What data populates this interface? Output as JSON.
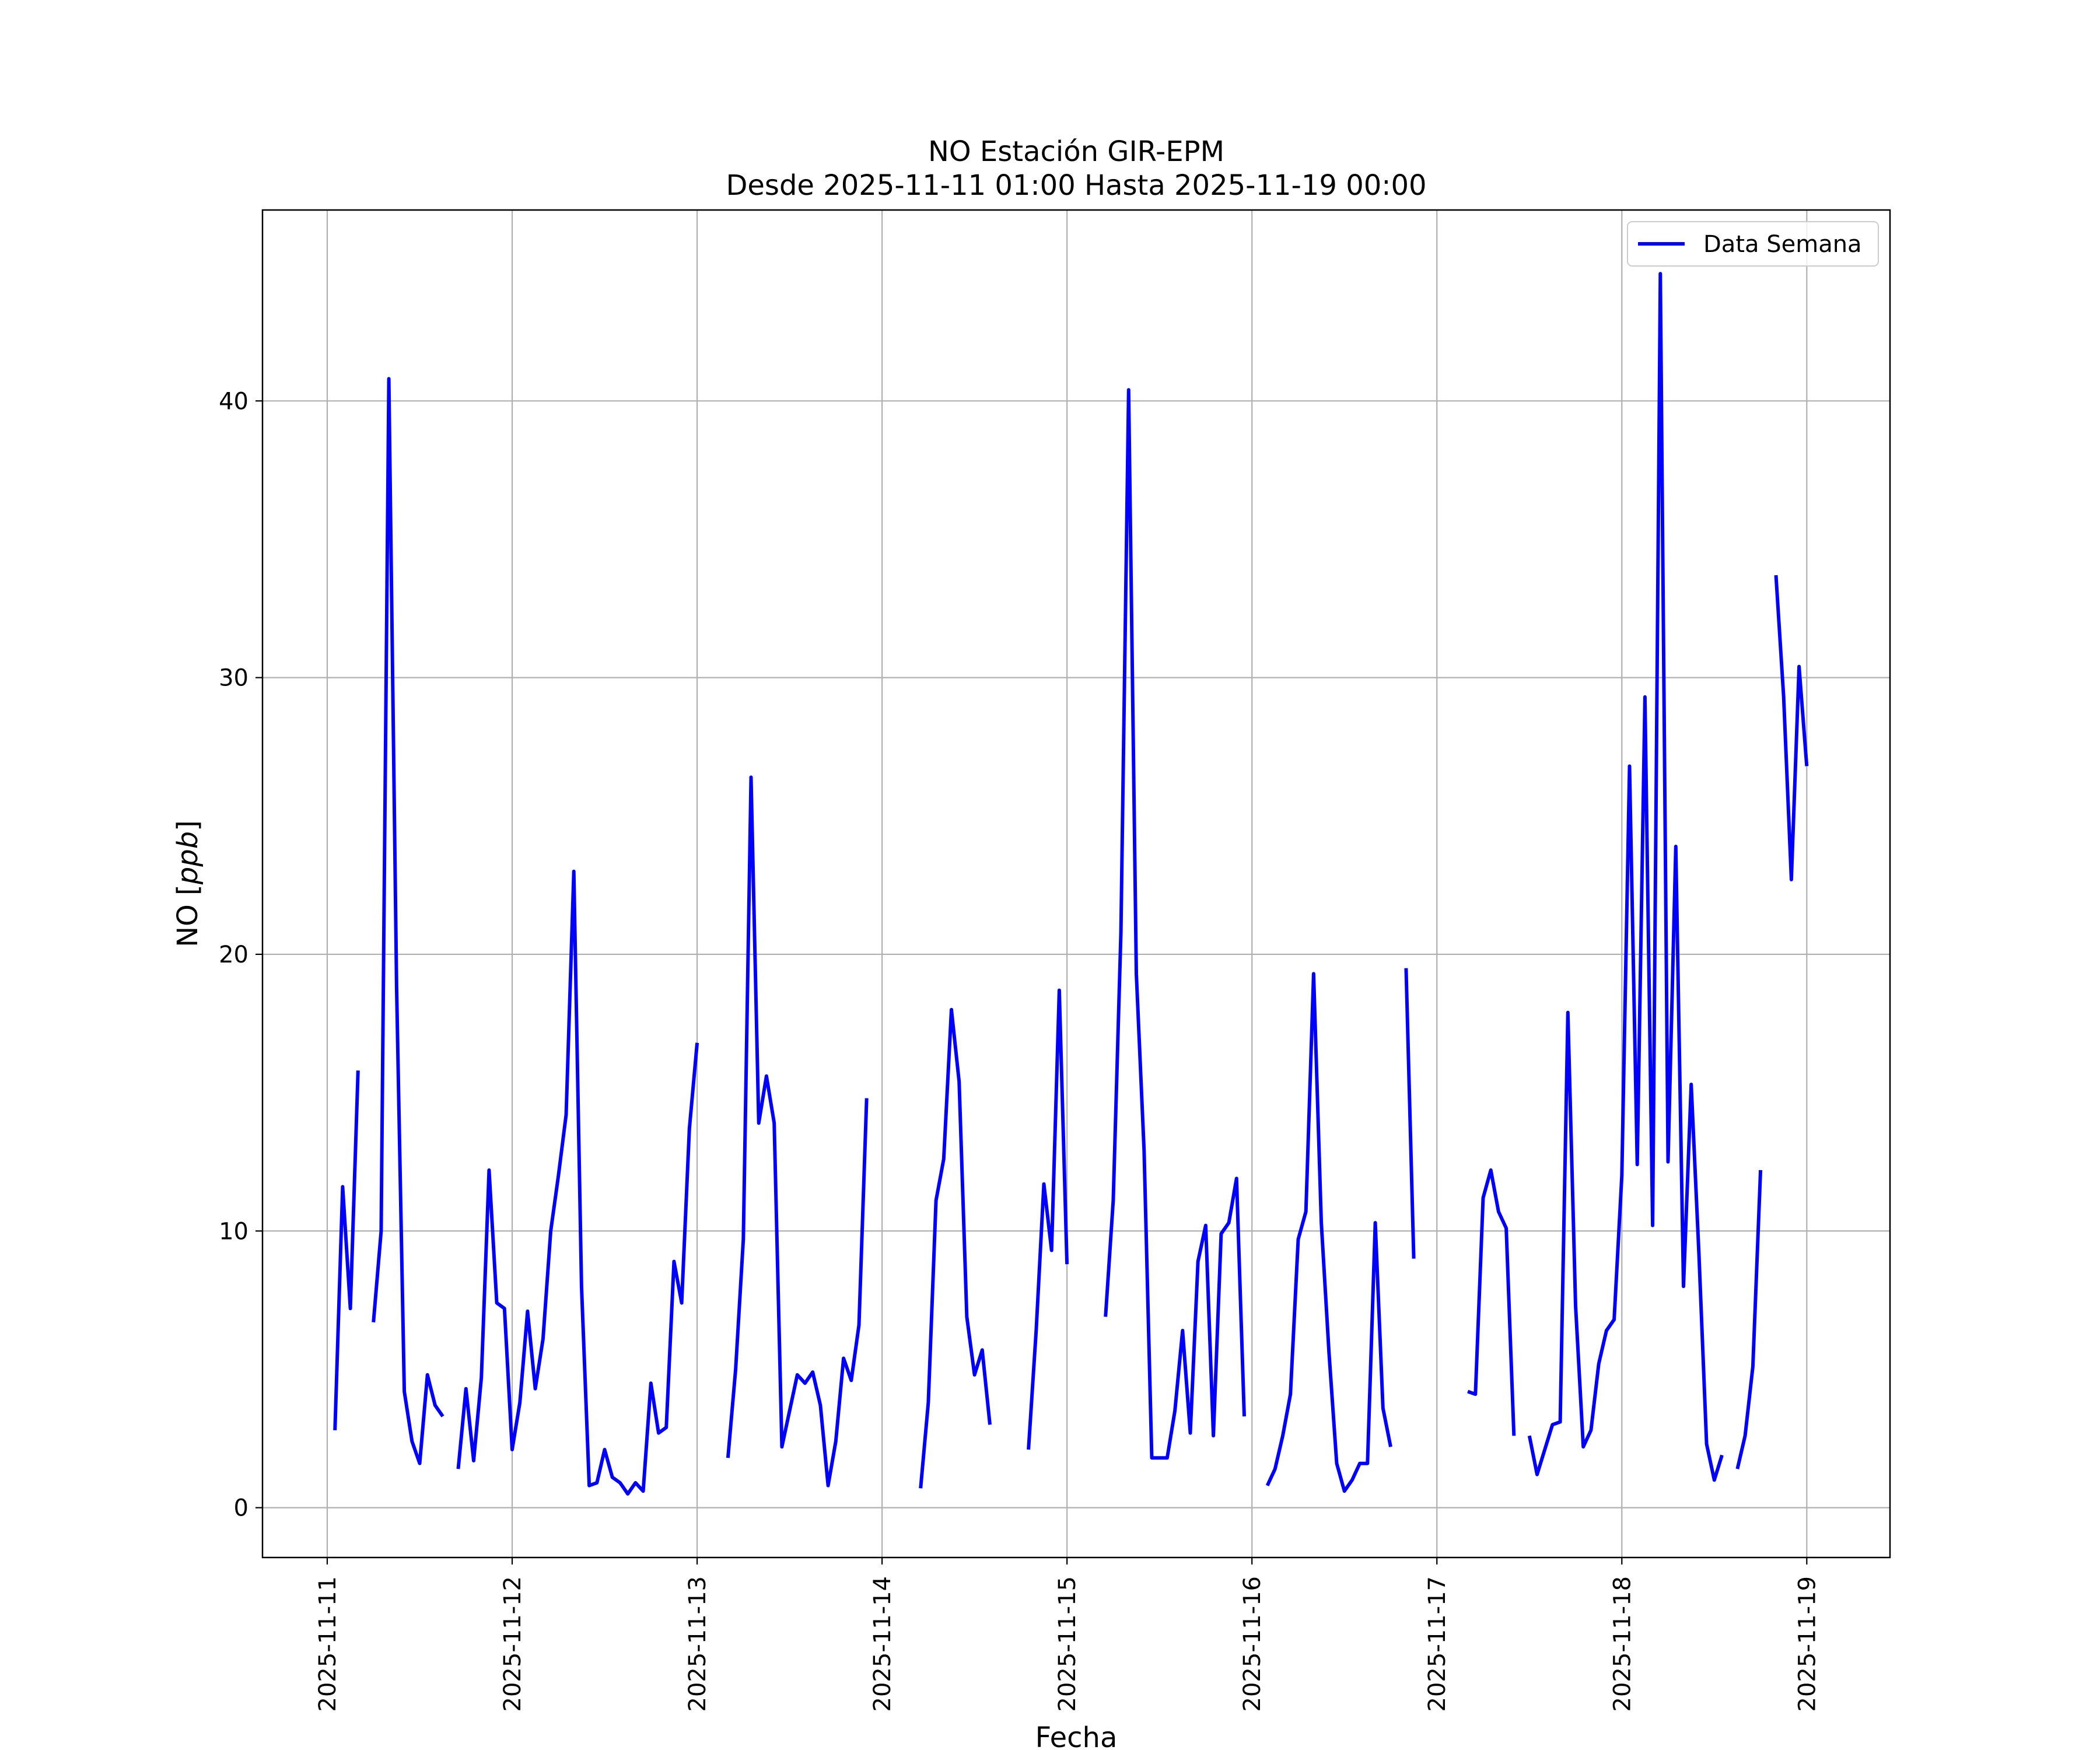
{
  "chart_data": {
    "type": "line",
    "title": "NO Estación GIR-EPM",
    "subtitle": "Desde 2025-11-11 01:00 Hasta 2025-11-19 00:00",
    "xlabel": "Fecha",
    "ylabel_main": "NO [",
    "ylabel_unit": "ppb",
    "ylabel_end": "]",
    "x_ticks": [
      "2025-11-11",
      "2025-11-12",
      "2025-11-13",
      "2025-11-14",
      "2025-11-15",
      "2025-11-16",
      "2025-11-17",
      "2025-11-18",
      "2025-11-19"
    ],
    "y_ticks": [
      "0",
      "10",
      "20",
      "30",
      "40"
    ],
    "xlim": [
      "2025-11-10 15:36",
      "2025-11-19 10:48"
    ],
    "ylim": [
      -1.8,
      46.9
    ],
    "grid": true,
    "legend_position": "upper right",
    "series": [
      {
        "name": "Data Semana",
        "color": "#0000ff",
        "segments": [
          [
            [
              "2025-11-11 01:00",
              2.8
            ],
            [
              "2025-11-11 02:00",
              11.6
            ],
            [
              "2025-11-11 03:00",
              7.2
            ],
            [
              "2025-11-11 04:00",
              15.8
            ]
          ],
          [
            [
              "2025-11-11 06:00",
              6.7
            ],
            [
              "2025-11-11 07:00",
              10.0
            ],
            [
              "2025-11-11 08:00",
              40.8
            ],
            [
              "2025-11-11 09:00",
              18.8
            ],
            [
              "2025-11-11 10:00",
              4.2
            ],
            [
              "2025-11-11 11:00",
              2.4
            ],
            [
              "2025-11-11 12:00",
              1.6
            ],
            [
              "2025-11-11 13:00",
              4.8
            ],
            [
              "2025-11-11 14:00",
              3.7
            ],
            [
              "2025-11-11 15:00",
              3.3
            ]
          ],
          [
            [
              "2025-11-11 17:00",
              1.4
            ],
            [
              "2025-11-11 18:00",
              4.3
            ],
            [
              "2025-11-11 19:00",
              1.7
            ],
            [
              "2025-11-11 20:00",
              4.7
            ],
            [
              "2025-11-11 21:00",
              12.2
            ],
            [
              "2025-11-11 22:00",
              7.4
            ],
            [
              "2025-11-11 23:00",
              7.2
            ],
            [
              "2025-11-12 00:00",
              2.1
            ],
            [
              "2025-11-12 01:00",
              3.8
            ],
            [
              "2025-11-12 02:00",
              7.1
            ],
            [
              "2025-11-12 03:00",
              4.3
            ],
            [
              "2025-11-12 04:00",
              6.1
            ],
            [
              "2025-11-12 05:00",
              10.0
            ],
            [
              "2025-11-12 06:00",
              12.0
            ],
            [
              "2025-11-12 07:00",
              14.2
            ],
            [
              "2025-11-12 08:00",
              23.0
            ],
            [
              "2025-11-12 09:00",
              8.0
            ],
            [
              "2025-11-12 10:00",
              0.8
            ],
            [
              "2025-11-12 11:00",
              0.9
            ],
            [
              "2025-11-12 12:00",
              2.1
            ],
            [
              "2025-11-12 13:00",
              1.1
            ],
            [
              "2025-11-12 14:00",
              0.9
            ],
            [
              "2025-11-12 15:00",
              0.5
            ],
            [
              "2025-11-12 16:00",
              0.9
            ],
            [
              "2025-11-12 17:00",
              0.6
            ],
            [
              "2025-11-12 18:00",
              4.5
            ],
            [
              "2025-11-12 19:00",
              2.7
            ],
            [
              "2025-11-12 20:00",
              2.9
            ],
            [
              "2025-11-12 21:00",
              8.9
            ],
            [
              "2025-11-12 22:00",
              7.4
            ],
            [
              "2025-11-12 23:00",
              13.7
            ],
            [
              "2025-11-13 00:00",
              16.8
            ]
          ],
          [
            [
              "2025-11-13 04:00",
              1.8
            ],
            [
              "2025-11-13 05:00",
              5.0
            ],
            [
              "2025-11-13 06:00",
              9.7
            ],
            [
              "2025-11-13 07:00",
              26.4
            ],
            [
              "2025-11-13 08:00",
              13.9
            ],
            [
              "2025-11-13 09:00",
              15.6
            ],
            [
              "2025-11-13 10:00",
              13.9
            ],
            [
              "2025-11-13 11:00",
              2.2
            ],
            [
              "2025-11-13 12:00",
              3.5
            ],
            [
              "2025-11-13 13:00",
              4.8
            ],
            [
              "2025-11-13 14:00",
              4.5
            ],
            [
              "2025-11-13 15:00",
              4.9
            ],
            [
              "2025-11-13 16:00",
              3.7
            ],
            [
              "2025-11-13 17:00",
              0.8
            ],
            [
              "2025-11-13 18:00",
              2.4
            ],
            [
              "2025-11-13 19:00",
              5.4
            ],
            [
              "2025-11-13 20:00",
              4.6
            ],
            [
              "2025-11-13 21:00",
              6.6
            ],
            [
              "2025-11-13 22:00",
              14.8
            ]
          ],
          [
            [
              "2025-11-14 05:00",
              0.7
            ],
            [
              "2025-11-14 06:00",
              3.8
            ],
            [
              "2025-11-14 07:00",
              11.1
            ],
            [
              "2025-11-14 08:00",
              12.6
            ],
            [
              "2025-11-14 09:00",
              18.0
            ],
            [
              "2025-11-14 10:00",
              15.4
            ],
            [
              "2025-11-14 11:00",
              6.9
            ],
            [
              "2025-11-14 12:00",
              4.8
            ],
            [
              "2025-11-14 13:00",
              5.7
            ],
            [
              "2025-11-14 14:00",
              3.0
            ]
          ],
          [
            [
              "2025-11-14 19:00",
              2.1
            ],
            [
              "2025-11-14 20:00",
              6.4
            ],
            [
              "2025-11-14 21:00",
              11.7
            ],
            [
              "2025-11-14 22:00",
              9.3
            ],
            [
              "2025-11-14 23:00",
              18.7
            ],
            [
              "2025-11-15 00:00",
              8.8
            ]
          ],
          [
            [
              "2025-11-15 05:00",
              6.9
            ],
            [
              "2025-11-15 06:00",
              11.1
            ],
            [
              "2025-11-15 07:00",
              20.8
            ],
            [
              "2025-11-15 08:00",
              40.4
            ],
            [
              "2025-11-15 09:00",
              19.3
            ],
            [
              "2025-11-15 10:00",
              12.9
            ],
            [
              "2025-11-15 11:00",
              1.8
            ],
            [
              "2025-11-15 12:00",
              1.8
            ],
            [
              "2025-11-15 13:00",
              1.8
            ],
            [
              "2025-11-15 14:00",
              3.5
            ],
            [
              "2025-11-15 15:00",
              6.4
            ],
            [
              "2025-11-15 16:00",
              2.7
            ],
            [
              "2025-11-15 17:00",
              8.9
            ],
            [
              "2025-11-15 18:00",
              10.2
            ],
            [
              "2025-11-15 19:00",
              2.6
            ],
            [
              "2025-11-15 20:00",
              9.9
            ],
            [
              "2025-11-15 21:00",
              10.3
            ],
            [
              "2025-11-15 22:00",
              11.9
            ],
            [
              "2025-11-15 23:00",
              3.3
            ]
          ],
          [
            [
              "2025-11-16 02:00",
              0.8
            ],
            [
              "2025-11-16 03:00",
              1.4
            ],
            [
              "2025-11-16 04:00",
              2.6
            ],
            [
              "2025-11-16 05:00",
              4.1
            ],
            [
              "2025-11-16 06:00",
              9.7
            ],
            [
              "2025-11-16 07:00",
              10.7
            ],
            [
              "2025-11-16 08:00",
              19.3
            ],
            [
              "2025-11-16 09:00",
              10.3
            ],
            [
              "2025-11-16 10:00",
              5.6
            ],
            [
              "2025-11-16 11:00",
              1.6
            ],
            [
              "2025-11-16 12:00",
              0.6
            ],
            [
              "2025-11-16 13:00",
              1.0
            ],
            [
              "2025-11-16 14:00",
              1.6
            ],
            [
              "2025-11-16 15:00",
              1.6
            ],
            [
              "2025-11-16 16:00",
              10.3
            ],
            [
              "2025-11-16 17:00",
              3.6
            ],
            [
              "2025-11-16 18:00",
              2.2
            ]
          ],
          [
            [
              "2025-11-16 20:00",
              19.5
            ],
            [
              "2025-11-16 21:00",
              9.0
            ]
          ],
          [
            [
              "2025-11-17 04:00",
              4.2
            ],
            [
              "2025-11-17 05:00",
              4.1
            ],
            [
              "2025-11-17 06:00",
              11.2
            ],
            [
              "2025-11-17 07:00",
              12.2
            ],
            [
              "2025-11-17 08:00",
              10.7
            ],
            [
              "2025-11-17 09:00",
              10.1
            ],
            [
              "2025-11-17 10:00",
              2.6
            ]
          ],
          [
            [
              "2025-11-17 12:00",
              2.6
            ],
            [
              "2025-11-17 13:00",
              1.2
            ],
            [
              "2025-11-17 14:00",
              2.1
            ],
            [
              "2025-11-17 15:00",
              3.0
            ],
            [
              "2025-11-17 16:00",
              3.1
            ],
            [
              "2025-11-17 17:00",
              17.9
            ],
            [
              "2025-11-17 18:00",
              7.3
            ],
            [
              "2025-11-17 19:00",
              2.2
            ],
            [
              "2025-11-17 20:00",
              2.8
            ],
            [
              "2025-11-17 21:00",
              5.2
            ],
            [
              "2025-11-17 22:00",
              6.4
            ],
            [
              "2025-11-17 23:00",
              6.8
            ],
            [
              "2025-11-18 00:00",
              12.0
            ],
            [
              "2025-11-18 01:00",
              26.8
            ],
            [
              "2025-11-18 02:00",
              12.4
            ],
            [
              "2025-11-18 03:00",
              29.3
            ],
            [
              "2025-11-18 04:00",
              10.2
            ],
            [
              "2025-11-18 05:00",
              44.6
            ],
            [
              "2025-11-18 06:00",
              12.5
            ],
            [
              "2025-11-18 07:00",
              23.9
            ],
            [
              "2025-11-18 08:00",
              8.0
            ],
            [
              "2025-11-18 09:00",
              15.3
            ],
            [
              "2025-11-18 10:00",
              9.2
            ],
            [
              "2025-11-18 11:00",
              2.3
            ],
            [
              "2025-11-18 12:00",
              1.0
            ],
            [
              "2025-11-18 13:00",
              1.9
            ]
          ],
          [
            [
              "2025-11-18 15:00",
              1.4
            ],
            [
              "2025-11-18 16:00",
              2.6
            ],
            [
              "2025-11-18 17:00",
              5.1
            ],
            [
              "2025-11-18 18:00",
              12.2
            ]
          ],
          [
            [
              "2025-11-18 20:00",
              33.7
            ],
            [
              "2025-11-18 21:00",
              29.3
            ],
            [
              "2025-11-18 22:00",
              22.7
            ],
            [
              "2025-11-18 23:00",
              30.4
            ],
            [
              "2025-11-19 00:00",
              26.8
            ]
          ]
        ]
      }
    ]
  }
}
